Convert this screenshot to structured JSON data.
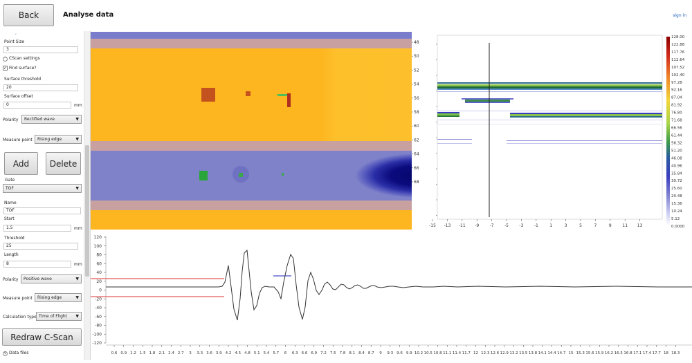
{
  "header": {
    "back_label": "Back",
    "title": "Analyse data",
    "signin_label": "sign in"
  },
  "sidebar": {
    "point_size_label": "Point Size",
    "point_size_value": "3",
    "cscan_settings_label": "CScan settings",
    "find_surface_label": "Find surface?",
    "find_surface_checked": "✓",
    "surface_threshold_label": "Surface threshold",
    "surface_threshold_value": "20",
    "surface_offset_label": "Surface offset",
    "surface_offset_value": "0",
    "mm": "mm",
    "polarity_label": "Polarity",
    "cscan_polarity_value": "Rectified wave",
    "measure_point_label": "Measure point",
    "cscan_measure_point_value": "Rising edge",
    "add_label": "Add",
    "delete_label": "Delete",
    "gate_label": "Gate",
    "gate_value": "TOF",
    "name_label": "Name",
    "name_value": "TOF",
    "start_label": "Start",
    "start_value": "1.5",
    "threshold_label": "Threshold",
    "threshold_value": "25",
    "length_label": "Length",
    "length_value": "8",
    "gate_polarity_value": "Positive wave",
    "gate_measure_point_value": "Rising edge",
    "calculation_type_label": "Calculation type",
    "calculation_type_value": "Time of Flight",
    "redraw_label": "Redraw C-Scan",
    "data_files_label": "Data files"
  },
  "cscan": {
    "y_ticks": [
      "48",
      "50",
      "52",
      "54",
      "56",
      "58",
      "60",
      "62",
      "64",
      "66",
      "68"
    ]
  },
  "bscan": {
    "x_ticks": [
      "-15",
      "-13",
      "-11",
      "-9",
      "-7",
      "-5",
      "-3",
      "-1",
      "1",
      "3",
      "5",
      "7",
      "9",
      "11",
      "13"
    ]
  },
  "colorbar": {
    "labels": [
      "128.00",
      "122.88",
      "117.76",
      "112.64",
      "107.52",
      "102.40",
      "97.28",
      "92.16",
      "87.04",
      "81.92",
      "76.80",
      "71.68",
      "66.56",
      "61.44",
      "56.32",
      "51.20",
      "46.08",
      "40.96",
      "35.84",
      "30.72",
      "25.60",
      "20.48",
      "15.36",
      "10.24",
      "5.12",
      "0.0000"
    ]
  },
  "ascan": {
    "y_ticks": [
      "120",
      "100",
      "80",
      "60",
      "40",
      "20",
      "0",
      "-20",
      "-40",
      "-60",
      "-80",
      "-100",
      "-120"
    ],
    "x_ticks": [
      "0.6",
      "0.9",
      "1.2",
      "1.5",
      "1.8",
      "2.1",
      "2.4",
      "2.7",
      "3",
      "3.3",
      "3.6",
      "3.9",
      "4.2",
      "4.5",
      "4.8",
      "5.1",
      "5.4",
      "5.7",
      "6",
      "6.3",
      "6.6",
      "6.9",
      "7.2",
      "7.5",
      "7.8",
      "8.1",
      "8.4",
      "8.7",
      "9",
      "9.3",
      "9.6",
      "9.9",
      "10.2",
      "10.5",
      "10.8",
      "11.1",
      "11.4",
      "11.7",
      "12",
      "12.3",
      "12.6",
      "12.9",
      "13.2",
      "13.5",
      "13.8",
      "14.1",
      "14.4",
      "14.7",
      "15",
      "15.3",
      "15.6",
      "15.9",
      "16.2",
      "16.5",
      "16.8",
      "17.1",
      "17.4",
      "17.7",
      "18",
      "18.3"
    ]
  },
  "colors": {
    "accent": "#1f5fbf",
    "gate_red": "#e35a5a",
    "gate_blue": "#4a4acc",
    "cscan_orange": "#fdb620",
    "cscan_pink": "#c9a0a0",
    "cscan_lavender": "#7f82c9",
    "cscan_navy": "#0a0a6a"
  }
}
